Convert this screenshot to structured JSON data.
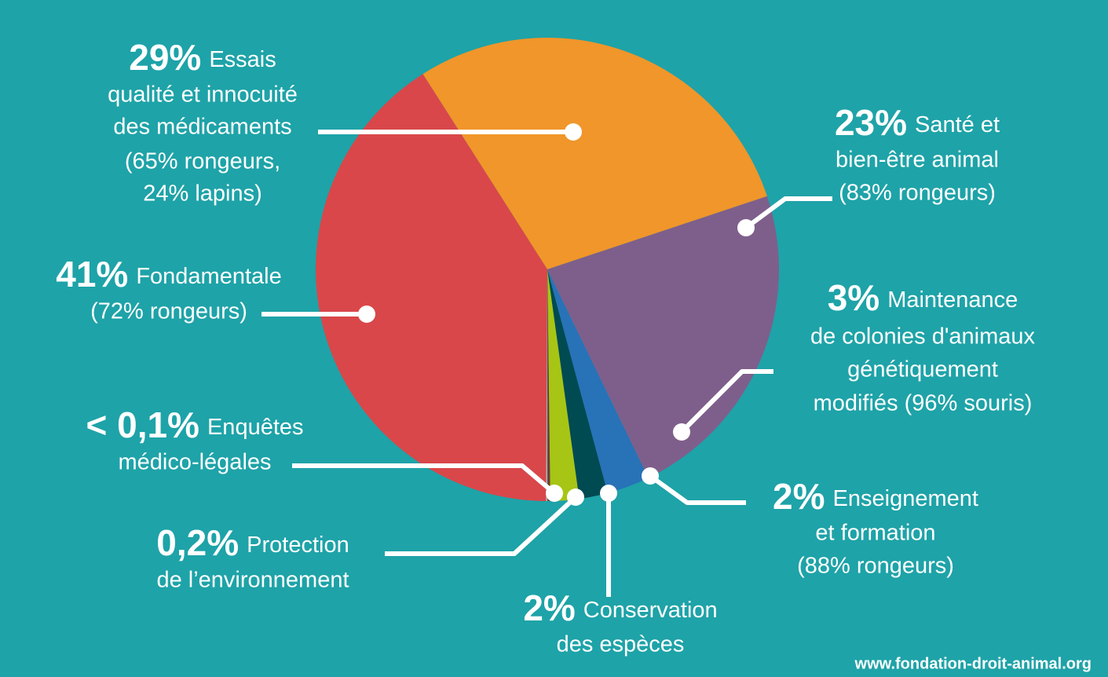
{
  "chart_data": {
    "type": "pie",
    "categories": [
      [
        "Essais",
        "qualité et innocuité",
        "des médicaments",
        "(65% rongeurs,",
        "24% lapins)"
      ],
      [
        "Santé et",
        "bien-être animal",
        "(83% rongeurs)"
      ],
      [
        "Maintenance",
        "de colonies d'animaux",
        "génétiquement",
        "modifiés (96% souris)"
      ],
      [
        "Enseignement",
        "et formation",
        "(88% rongeurs)"
      ],
      [
        "Conservation",
        "des espèces"
      ],
      [
        "Protection",
        "de l’environnement"
      ],
      [
        "Enquêtes",
        "médico-légales"
      ],
      [
        "Fondamentale",
        "(72% rongeurs)"
      ]
    ],
    "values": [
      29,
      23,
      3,
      2,
      2,
      0.2,
      0.1,
      41
    ],
    "value_labels": [
      "29%",
      "23%",
      "3%",
      "2%",
      "2%",
      "0,2%",
      "< 0,1%",
      "41%"
    ],
    "colors": [
      "#f0962a",
      "#7e5f8b",
      "#2872b8",
      "#004a52",
      "#a7c514",
      "#6b3f35",
      "#b2b2b2",
      "#d9474a"
    ],
    "source": "www.fondation-droit-animal.org"
  }
}
